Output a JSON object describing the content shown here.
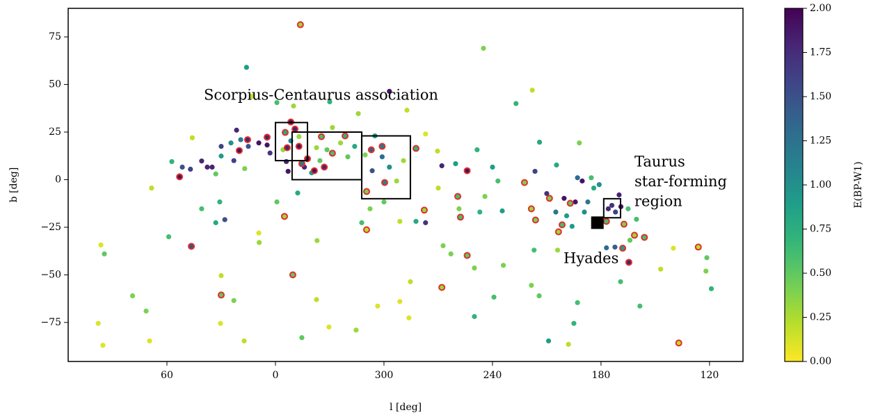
{
  "chart_data": {
    "type": "scatter",
    "xlabel": "l [deg]",
    "ylabel": "b [deg]",
    "xlim": [
      114.6,
      -258.5
    ],
    "ylim": [
      -95.5,
      90
    ],
    "xticks": [
      60,
      0,
      {
        "value": -60,
        "label": "300"
      },
      {
        "value": -120,
        "label": "240"
      },
      {
        "value": -180,
        "label": "180"
      },
      {
        "value": -240,
        "label": "120"
      }
    ],
    "yticks": [
      {
        "value": -75,
        "label": "−75"
      },
      {
        "value": -50,
        "label": "−50"
      },
      {
        "value": -25,
        "label": "−25"
      },
      0,
      25,
      50,
      75
    ],
    "colorbar": {
      "label": "E(BP-W1)",
      "colormap": "viridis_r",
      "clim": [
        0,
        2
      ],
      "ticks": [
        {
          "value": 0,
          "label": "0.00"
        },
        {
          "value": 0.25,
          "label": "0.25"
        },
        {
          "value": 0.5,
          "label": "0.50"
        },
        {
          "value": 0.75,
          "label": "0.75"
        },
        {
          "value": 1,
          "label": "1.00"
        },
        {
          "value": 1.25,
          "label": "1.25"
        },
        {
          "value": 1.5,
          "label": "1.50"
        },
        {
          "value": 1.75,
          "label": "1.75"
        },
        {
          "value": 2,
          "label": "2.00"
        }
      ]
    },
    "series": [
      {
        "x": [
          96.5,
          94.6,
          95.4,
          98,
          79,
          71.5,
          69.6,
          59,
          68.5,
          57.3,
          46,
          40.8,
          30.8,
          30,
          30.4,
          17.3,
          16,
          23,
          9.2,
          9,
          -14.6,
          -23,
          -22.7,
          -29.6,
          -44.6,
          -56.5,
          -68.8,
          -74.6,
          -73.8,
          -92.7,
          -97,
          -110,
          -120.8,
          -126,
          -110,
          -115,
          -133,
          -142,
          -146,
          -143.5,
          -155.4,
          -168,
          -150,
          -155,
          -143,
          -141.5,
          -151,
          -162,
          -165,
          -167,
          -145.8,
          -156,
          -190.8,
          -201.5,
          -213,
          -220,
          -238.5,
          -238,
          -241,
          -196,
          -183,
          13,
          -0.8,
          -10,
          -30,
          -63,
          -72.7,
          -83,
          -89.6,
          -111.5,
          -92,
          -99.6,
          -120,
          21.5,
          19.2,
          24.6,
          30,
          35,
          37.7,
          33,
          23,
          17,
          15,
          9.2,
          4.6,
          3,
          -4.2,
          -8.5,
          -13,
          -6,
          -16,
          -20,
          -24.6,
          -28.5,
          -36,
          -40,
          -43.8,
          -49.6,
          -53.5,
          -55,
          -59,
          -63,
          -67,
          -70.8,
          -47.7,
          -52.3,
          -60,
          -68.8,
          -77.7,
          -83,
          -90,
          -101.5,
          -113,
          -115.8,
          -123,
          -125.4,
          30,
          40.8,
          51.5,
          47,
          33,
          28,
          -12.3,
          -0.8,
          -7,
          -22.7,
          -31.5,
          -45.8,
          -170.8,
          -172.7,
          -174.6,
          -176,
          -179,
          -167,
          -169.6,
          -165.8,
          -161,
          -190,
          -186,
          -184,
          -188,
          -191,
          -195,
          -199.6,
          -187.7,
          -159.6,
          -164
        ],
        "y": [
          -34.3,
          -39,
          -87,
          -75.5,
          -61,
          -69,
          -84.7,
          -30,
          -4.4,
          9.5,
          22,
          -15.3,
          -11.7,
          -50.4,
          -75.5,
          -84.7,
          59,
          -63.5,
          -28,
          -33,
          -83,
          -32,
          -63,
          -77.4,
          -79,
          -66.4,
          -64,
          -53.6,
          -72.6,
          -34.7,
          -39,
          -46.4,
          -61.7,
          -45,
          -71.9,
          69,
          40,
          47,
          19.7,
          4.4,
          7.7,
          19.3,
          -7.3,
          -17,
          -37,
          -55.5,
          -84.7,
          -86.5,
          -75.5,
          -64.6,
          -61,
          -37,
          -53.6,
          -66.4,
          -47,
          -36,
          -41,
          -48,
          -57.3,
          -31.8,
          -35.8,
          43.8,
          40.5,
          38.7,
          40.9,
          46.4,
          36.5,
          24,
          15,
          15.7,
          7.3,
          8.4,
          6.6,
          26,
          21,
          19.3,
          17.5,
          6.6,
          6.6,
          3,
          10,
          5.8,
          17.5,
          19.3,
          18.2,
          14,
          15.7,
          20.4,
          22.6,
          9.5,
          6.6,
          3.6,
          10,
          15.7,
          19.3,
          12,
          17.5,
          13,
          4.7,
          23,
          12,
          6.6,
          -0.7,
          10,
          -22.6,
          -15.3,
          -11.7,
          -21.9,
          -21.9,
          -22.6,
          -4.4,
          -15.3,
          -17,
          -8.8,
          -0.7,
          -16.4,
          12.4,
          9.8,
          6.6,
          5.5,
          -22.6,
          -21,
          -7,
          -11.7,
          4.4,
          16.8,
          27.4,
          34.7,
          -17,
          -11.7,
          1,
          -4.4,
          -2.6,
          1,
          -0.7,
          -11.7,
          -19,
          -8,
          -13.5,
          -15.3,
          -17,
          -14.2,
          -15.3,
          -20.8,
          -35.4,
          -9.8,
          -24.5
        ],
        "c": [
          0.1,
          0.5,
          0.1,
          0.1,
          0.4,
          0.4,
          0.1,
          0.6,
          0.2,
          0.7,
          0.2,
          0.6,
          0.7,
          0.2,
          0.1,
          0.2,
          0.9,
          0.4,
          0.1,
          0.3,
          0.5,
          0.3,
          0.2,
          0.1,
          0.3,
          0.1,
          0.1,
          0.2,
          0.1,
          0.4,
          0.4,
          0.4,
          0.6,
          0.4,
          0.7,
          0.4,
          0.7,
          0.2,
          0.8,
          1.6,
          0.8,
          0.4,
          1.7,
          1.2,
          0.6,
          0.4,
          0.9,
          0.2,
          0.7,
          0.6,
          0.5,
          0.3,
          0.6,
          0.6,
          0.2,
          0.1,
          0.5,
          0.4,
          0.7,
          0.5,
          1.3,
          0.2,
          0.6,
          0.3,
          0.7,
          1.9,
          0.2,
          0.1,
          0.2,
          0.7,
          1.8,
          0.9,
          0.9,
          1.8,
          1.2,
          1.0,
          1.6,
          1.8,
          1.8,
          0.5,
          1.6,
          0.4,
          1.5,
          1.9,
          1.9,
          1.7,
          0.3,
          1.1,
          0.3,
          1.8,
          1.8,
          0.9,
          0.5,
          0.5,
          0.3,
          0.5,
          0.8,
          0.4,
          1.5,
          0.9,
          1.3,
          1.0,
          0.3,
          0.3,
          0.6,
          0.4,
          0.5,
          0.2,
          0.8,
          1.7,
          0.2,
          0.4,
          0.7,
          0.4,
          0.6,
          0.9,
          0.9,
          1.8,
          1.5,
          1.6,
          0.8,
          1.5,
          0.8,
          0.5,
          1.9,
          0.3,
          0.3,
          0.3,
          1.0,
          1.2,
          0.6,
          0.8,
          1.0,
          1.3,
          1.9,
          1.9,
          0.9,
          1.8,
          1.7,
          1.8,
          1.6,
          1.9,
          0.6,
          0.6,
          1.4,
          1.9,
          0.9
        ]
      },
      {
        "edgecolor": "#e0302a",
        "x": [
          -13.8,
          46.5,
          30,
          -9.6,
          -5,
          -92,
          -106,
          -223,
          -233.8,
          53,
          20,
          15.4,
          4.6,
          -5.4,
          -8.5,
          -10.8,
          -13,
          -17.7,
          -14.6,
          -25.4,
          -31.5,
          -38.5,
          -53,
          -59,
          -60.4,
          -50.4,
          -50.4,
          -77.7,
          -82.3,
          -100.8,
          -102.3,
          -106,
          -137.7,
          -141.5,
          -143.8,
          -151.5,
          -158.5,
          -156.5,
          -163,
          -183,
          -192.7,
          -198.5,
          -204,
          -192,
          -195.4,
          -27,
          -21.5,
          -6.5
        ],
        "y": [
          81.4,
          -35,
          -60.6,
          -50,
          -19.3,
          -56.6,
          -39.8,
          -85.8,
          -35.4,
          1.5,
          15.3,
          21,
          22.3,
          24.8,
          30.3,
          26.6,
          17.5,
          11,
          8.4,
          22.6,
          13.9,
          23,
          15.7,
          17.5,
          -1.5,
          -6.2,
          -26.3,
          16.4,
          -16,
          -8.8,
          -19.7,
          4.7,
          -1.5,
          -15.3,
          -21.2,
          -9.8,
          -23.7,
          -27.4,
          -12.4,
          -21.9,
          -23.4,
          -29.2,
          -30.3,
          -36,
          -43.4,
          6.6,
          4.7,
          16.8
        ],
        "c": [
          0.3,
          1.5,
          0.5,
          0.5,
          0.3,
          0.3,
          0.5,
          0.2,
          0.2,
          1.9,
          1.9,
          1.8,
          1.8,
          0.8,
          1.9,
          1.8,
          1.9,
          1.9,
          1.2,
          0.6,
          0.6,
          0.7,
          1.4,
          1.2,
          1.1,
          0.4,
          0.2,
          0.7,
          0.3,
          0.6,
          0.6,
          1.9,
          0.4,
          0.3,
          0.4,
          0.4,
          0.6,
          0.3,
          0.5,
          0.6,
          0.4,
          0.3,
          0.6,
          0.9,
          1.8,
          1.8,
          1.9,
          1.8
        ]
      }
    ],
    "regions": [
      {
        "xlim": [
          0,
          -17.7
        ],
        "ylim": [
          10,
          30
        ]
      },
      {
        "xlim": [
          -9.2,
          -47.7
        ],
        "ylim": [
          0,
          25
        ]
      },
      {
        "xlim": [
          -47.7,
          -74.6
        ],
        "ylim": [
          -10,
          23
        ]
      },
      {
        "xlim": [
          -181.5,
          -190.8
        ],
        "ylim": [
          -20,
          -10
        ]
      }
    ],
    "markers": [
      {
        "x": -178,
        "y": -22.6,
        "color": "#000000"
      }
    ],
    "annotations": [
      {
        "text": "Scorpius-Centaurus association"
      },
      {
        "lines": [
          "Taurus",
          "star-forming",
          "region"
        ]
      },
      {
        "text": "Hyades"
      }
    ]
  }
}
